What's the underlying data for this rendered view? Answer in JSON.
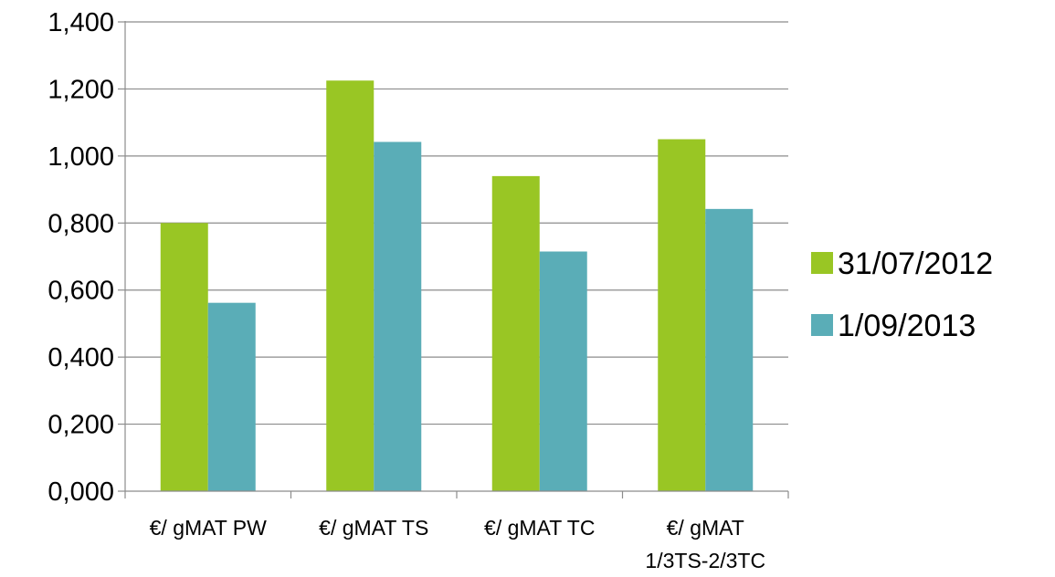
{
  "chart_data": {
    "type": "bar",
    "title": "",
    "xlabel": "",
    "ylabel": "",
    "categories": [
      [
        "€/ gMAT PW"
      ],
      [
        "€/ gMAT TS"
      ],
      [
        "€/ gMAT TC"
      ],
      [
        "€/ gMAT",
        "1/3TS-2/3TC"
      ]
    ],
    "series": [
      {
        "name": "31/07/2012",
        "color": "#99c624",
        "values": [
          0.8,
          1.225,
          0.94,
          1.05
        ]
      },
      {
        "name": "1/09/2013",
        "color": "#5aadb7",
        "values": [
          0.562,
          1.042,
          0.715,
          0.842
        ]
      }
    ],
    "ylim": [
      0,
      1.4
    ],
    "yticks": [
      "0,000",
      "0,200",
      "0,400",
      "0,600",
      "0,800",
      "1,000",
      "1,200",
      "1,400"
    ],
    "grid": true,
    "legend": "right"
  }
}
